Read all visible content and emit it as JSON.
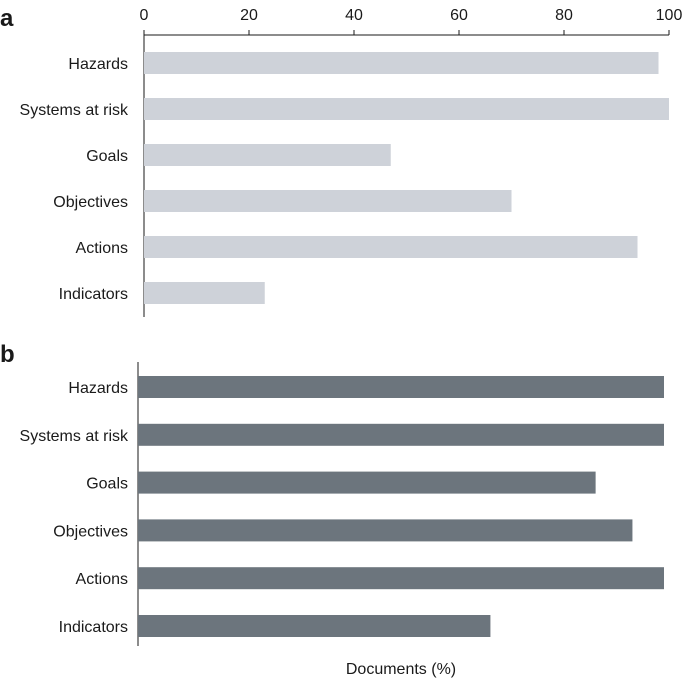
{
  "chart_data": [
    {
      "panel": "a",
      "type": "bar",
      "orientation": "horizontal",
      "categories": [
        "Hazards",
        "Systems at risk",
        "Goals",
        "Objectives",
        "Actions",
        "Indicators"
      ],
      "values": [
        98,
        100,
        47,
        70,
        94,
        23
      ],
      "xlim": [
        0,
        100
      ],
      "xticks": [
        0,
        20,
        40,
        60,
        80,
        100
      ],
      "xaxis_position": "top",
      "xlabel": "",
      "color": "#ced2d9"
    },
    {
      "panel": "b",
      "type": "bar",
      "orientation": "horizontal",
      "categories": [
        "Hazards",
        "Systems at risk",
        "Goals",
        "Objectives",
        "Actions",
        "Indicators"
      ],
      "values": [
        100,
        100,
        87,
        94,
        100,
        67
      ],
      "xlim": [
        0,
        100
      ],
      "xlabel": "Documents (%)",
      "color": "#6c757d"
    }
  ]
}
